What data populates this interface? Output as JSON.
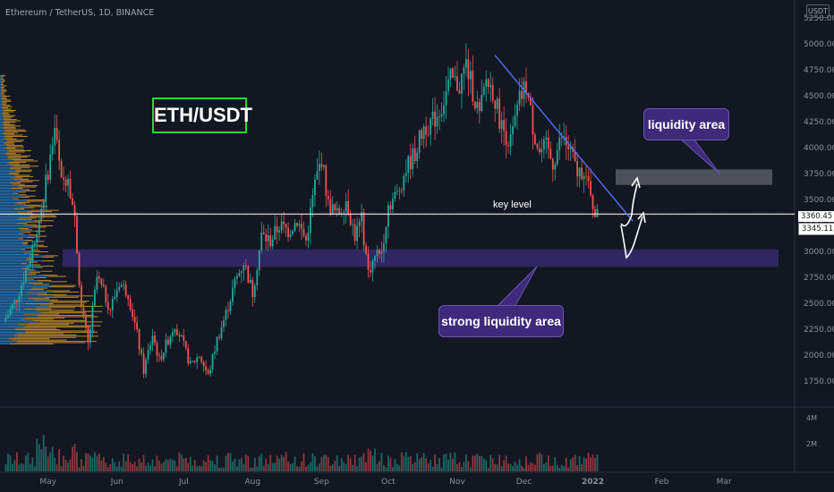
{
  "header": {
    "symbol_title": "Ethereum / TetherUS, 1D, BINANCE",
    "currency": "USDT"
  },
  "annotations": {
    "title": "ETH/USDT",
    "liquidity_area": "liquidity area",
    "strong_liquidity_area": "strong liquidity area",
    "key_level": "key level"
  },
  "price_tags": {
    "key_level_price": "3360.45",
    "last_price": "3345.11"
  },
  "volume_axis": {
    "labels": [
      "4M",
      "2M"
    ]
  },
  "colors": {
    "background": "#131722",
    "up": "#26a69a",
    "down": "#ef5350",
    "trendline": "#4a73ff",
    "strong_zone": "#3a2c7a",
    "liquidity_zone": "#5c5f69",
    "profile_blue": "#2c8fe0",
    "profile_orange": "#e0a02a",
    "title_border": "#2bd43b"
  },
  "chart_data": {
    "type": "candlestick",
    "title": "ETH/USDT",
    "y_axis": {
      "min": 1500,
      "max": 5250,
      "ticks": [
        5250,
        5000,
        4750,
        4500,
        4250,
        4000,
        3750,
        3500,
        3250,
        3000,
        2750,
        2500,
        2250,
        2000,
        1750
      ],
      "tick_labels": [
        "5250.00",
        "5000.00",
        "4750.00",
        "4500.00",
        "4250.00",
        "4000.00",
        "3750.00",
        "3500.00",
        "3250.00",
        "3000.00",
        "2750.00",
        "2500.00",
        "2250.00",
        "2000.00",
        "1750.00"
      ]
    },
    "x_axis": {
      "labels": [
        "May",
        "Jun",
        "Jul",
        "Aug",
        "Sep",
        "Oct",
        "Nov",
        "Dec",
        "2022",
        "Feb",
        "Mar"
      ],
      "label_day_index": [
        20,
        51,
        81,
        112,
        143,
        173,
        204,
        234,
        265,
        296,
        324
      ]
    },
    "key_level": 3360.45,
    "last_price": 3345.11,
    "zones": [
      {
        "name": "strong liquidity area",
        "from": 2850,
        "to": 3020
      },
      {
        "name": "liquidity area",
        "from": 3640,
        "to": 3790
      }
    ],
    "trendline": [
      {
        "day": 221,
        "price": 4890
      },
      {
        "day": 283,
        "price": 3290
      }
    ],
    "price_path": [
      [
        0,
        2320
      ],
      [
        6,
        2550
      ],
      [
        12,
        2950
      ],
      [
        17,
        3420
      ],
      [
        21,
        3900
      ],
      [
        23,
        4200
      ],
      [
        26,
        3650
      ],
      [
        29,
        3750
      ],
      [
        32,
        3300
      ],
      [
        35,
        2450
      ],
      [
        38,
        2100
      ],
      [
        42,
        2750
      ],
      [
        45,
        2600
      ],
      [
        48,
        2450
      ],
      [
        52,
        2700
      ],
      [
        56,
        2600
      ],
      [
        60,
        2200
      ],
      [
        63,
        1850
      ],
      [
        67,
        2200
      ],
      [
        70,
        1950
      ],
      [
        74,
        2150
      ],
      [
        77,
        2300
      ],
      [
        80,
        2150
      ],
      [
        84,
        1900
      ],
      [
        88,
        2000
      ],
      [
        92,
        1800
      ],
      [
        96,
        2150
      ],
      [
        100,
        2400
      ],
      [
        104,
        2700
      ],
      [
        108,
        2900
      ],
      [
        112,
        2600
      ],
      [
        116,
        3150
      ],
      [
        120,
        3100
      ],
      [
        124,
        3250
      ],
      [
        128,
        3200
      ],
      [
        132,
        3300
      ],
      [
        136,
        3100
      ],
      [
        140,
        3650
      ],
      [
        143,
        3900
      ],
      [
        146,
        3450
      ],
      [
        150,
        3350
      ],
      [
        154,
        3500
      ],
      [
        158,
        3150
      ],
      [
        161,
        3300
      ],
      [
        164,
        2800
      ],
      [
        167,
        2950
      ],
      [
        170,
        3000
      ],
      [
        173,
        3450
      ],
      [
        177,
        3550
      ],
      [
        181,
        3800
      ],
      [
        185,
        3950
      ],
      [
        189,
        4200
      ],
      [
        193,
        4250
      ],
      [
        197,
        4400
      ],
      [
        201,
        4650
      ],
      [
        205,
        4600
      ],
      [
        208,
        4800
      ],
      [
        211,
        4550
      ],
      [
        214,
        4300
      ],
      [
        217,
        4650
      ],
      [
        220,
        4550
      ],
      [
        224,
        4200
      ],
      [
        228,
        4050
      ],
      [
        232,
        4450
      ],
      [
        235,
        4600
      ],
      [
        238,
        4200
      ],
      [
        241,
        3950
      ],
      [
        244,
        4000
      ],
      [
        247,
        3850
      ],
      [
        251,
        4100
      ],
      [
        255,
        3950
      ],
      [
        258,
        3750
      ],
      [
        261,
        3800
      ],
      [
        264,
        3500
      ],
      [
        267,
        3345
      ]
    ],
    "volume_profile": [
      {
        "price": 2150,
        "blue": 20,
        "orange": 90
      },
      {
        "price": 2250,
        "blue": 30,
        "orange": 85
      },
      {
        "price": 2350,
        "blue": 45,
        "orange": 70
      },
      {
        "price": 2450,
        "blue": 55,
        "orange": 60
      },
      {
        "price": 2550,
        "blue": 60,
        "orange": 45
      },
      {
        "price": 2650,
        "blue": 60,
        "orange": 30
      },
      {
        "price": 2750,
        "blue": 55,
        "orange": 20
      },
      {
        "price": 2850,
        "blue": 48,
        "orange": 12
      },
      {
        "price": 2950,
        "blue": 52,
        "orange": 15
      },
      {
        "price": 3050,
        "blue": 45,
        "orange": 10
      },
      {
        "price": 3150,
        "blue": 40,
        "orange": 12
      },
      {
        "price": 3250,
        "blue": 38,
        "orange": 22
      },
      {
        "price": 3350,
        "blue": 35,
        "orange": 32
      },
      {
        "price": 3450,
        "blue": 32,
        "orange": 22
      },
      {
        "price": 3550,
        "blue": 28,
        "orange": 12
      },
      {
        "price": 3650,
        "blue": 22,
        "orange": 22
      },
      {
        "price": 3750,
        "blue": 18,
        "orange": 20
      },
      {
        "price": 3850,
        "blue": 15,
        "orange": 28
      },
      {
        "price": 3950,
        "blue": 10,
        "orange": 25
      },
      {
        "price": 4050,
        "blue": 8,
        "orange": 20
      },
      {
        "price": 4150,
        "blue": 6,
        "orange": 25
      },
      {
        "price": 4250,
        "blue": 5,
        "orange": 18
      },
      {
        "price": 4350,
        "blue": 4,
        "orange": 14
      },
      {
        "price": 4450,
        "blue": 3,
        "orange": 10
      },
      {
        "price": 4550,
        "blue": 2,
        "orange": 6
      },
      {
        "price": 4650,
        "blue": 2,
        "orange": 4
      }
    ]
  }
}
